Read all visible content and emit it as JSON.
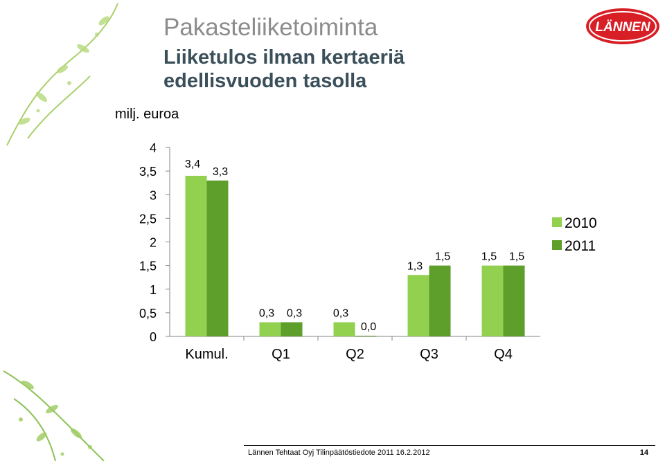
{
  "slide": {
    "title": "Pakasteliiketoiminta",
    "subtitle": "Liiketulos ilman kertaeriä edellisvuoden tasolla",
    "unit_label": "milj. euroa",
    "logo_text": "LÄNNEN",
    "footer": {
      "text": "Lännen Tehtaat Oyj Tilinpäätöstiedote 2011        16.2.2012",
      "page": "14"
    }
  },
  "chart_data": {
    "type": "bar",
    "categories": [
      "Kumul.",
      "Q1",
      "Q2",
      "Q3",
      "Q4"
    ],
    "series": [
      {
        "name": "2010",
        "values": [
          3.4,
          0.3,
          0.3,
          1.3,
          1.5
        ],
        "labels": [
          "3,4",
          "0,3",
          "0,3",
          "1,3",
          "1,5"
        ],
        "color": "#92d050"
      },
      {
        "name": "2011",
        "values": [
          3.3,
          0.3,
          0.0,
          1.5,
          1.5
        ],
        "labels": [
          "3,3",
          "0,3",
          "0,0",
          "1,5",
          "1,5"
        ],
        "color": "#5e9e2a"
      }
    ],
    "ylim": [
      0,
      4
    ],
    "yticks": [
      0,
      0.5,
      1,
      1.5,
      2,
      2.5,
      3,
      3.5,
      4
    ],
    "ytick_labels": [
      "0",
      "0,5",
      "1",
      "1,5",
      "2",
      "2,5",
      "3",
      "3,5",
      "4"
    ],
    "grid": false,
    "legend": "right"
  }
}
